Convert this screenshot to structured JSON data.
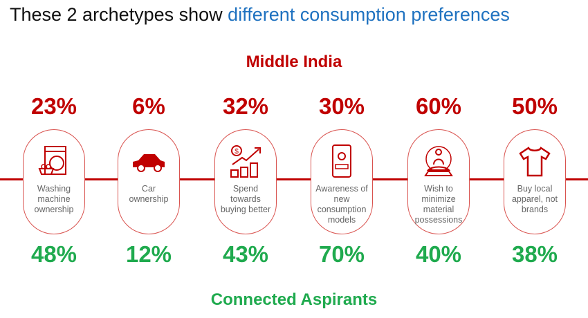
{
  "title": {
    "prefix": "These 2 archetypes show ",
    "highlight": "different consumption preferences"
  },
  "groups": {
    "top": "Middle India",
    "bottom": "Connected Aspirants"
  },
  "colors": {
    "middle_india": "#c00000",
    "connected_aspirants": "#1faa4e",
    "highlight": "#1f72c0"
  },
  "items": [
    {
      "label": "Washing\nmachine\nownership",
      "icon": "washing-machine-icon",
      "middle_india": "23%",
      "connected_aspirants": "48%"
    },
    {
      "label": "Car\nownership",
      "icon": "car-icon",
      "middle_india": "6%",
      "connected_aspirants": "12%"
    },
    {
      "label": "Spend\ntowards\nbuying better",
      "icon": "money-growth-icon",
      "middle_india": "32%",
      "connected_aspirants": "43%"
    },
    {
      "label": "Awareness of\nnew\nconsumption\nmodels",
      "icon": "taxi-app-icon",
      "middle_india": "30%",
      "connected_aspirants": "70%"
    },
    {
      "label": "Wish to\nminimize\nmaterial\npossessions",
      "icon": "buddha-icon",
      "middle_india": "60%",
      "connected_aspirants": "40%"
    },
    {
      "label": "Buy local\napparel, not\nbrands",
      "icon": "tshirt-icon",
      "middle_india": "50%",
      "connected_aspirants": "38%"
    }
  ]
}
